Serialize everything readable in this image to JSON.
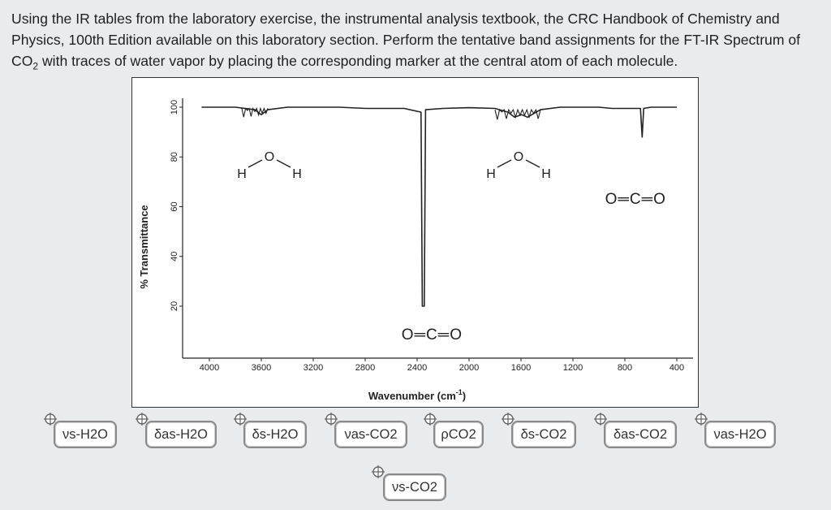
{
  "question": {
    "text_before_sub": "Using the IR tables from the laboratory exercise, the instrumental analysis textbook, the CRC Handbook of Chemistry and Physics, 100th Edition available on this laboratory section.  Perform the tentative band assignments for the  FT-IR Spectrum of CO",
    "subscript": "2",
    "text_after_sub": " with traces of water vapor by placing the corresponding marker at the central atom of each molecule."
  },
  "chart_data": {
    "type": "line",
    "title": "",
    "xlabel": "Wavenumber (cm⁻¹)",
    "ylabel": "% Transmittance",
    "x_reversed": true,
    "xlim": [
      4000,
      400
    ],
    "ylim": [
      0,
      100
    ],
    "x_ticks": [
      "4000",
      "3600",
      "3200",
      "2800",
      "2400",
      "2000",
      "1600",
      "1200",
      "800",
      "400"
    ],
    "y_ticks": [
      "100",
      "80",
      "60",
      "40",
      "20"
    ],
    "series": [
      {
        "values_xy": [
          [
            4060,
            100
          ],
          [
            3800,
            100
          ],
          [
            3650,
            99
          ],
          [
            3600,
            97
          ],
          [
            3550,
            99
          ],
          [
            3400,
            100
          ],
          [
            3000,
            100
          ],
          [
            2800,
            99.5
          ],
          [
            2500,
            99.5
          ],
          [
            2370,
            98
          ],
          [
            2360,
            20
          ],
          [
            2345,
            20
          ],
          [
            2335,
            99
          ],
          [
            2200,
            99.5
          ],
          [
            2000,
            99.8
          ],
          [
            1800,
            99.5
          ],
          [
            1700,
            98
          ],
          [
            1650,
            96
          ],
          [
            1595,
            97
          ],
          [
            1550,
            96
          ],
          [
            1450,
            99
          ],
          [
            1300,
            100
          ],
          [
            1000,
            100
          ],
          [
            900,
            99.5
          ],
          [
            680,
            99.5
          ],
          [
            667,
            88
          ],
          [
            655,
            99.5
          ],
          [
            600,
            100
          ],
          [
            400,
            100
          ]
        ]
      }
    ],
    "annotations": [
      {
        "type": "molecule",
        "atoms": [
          "H",
          "O",
          "H"
        ],
        "near_x": 3600
      },
      {
        "type": "molecule",
        "atoms": [
          "H",
          "O",
          "H"
        ],
        "near_x": 1600
      },
      {
        "type": "molecule",
        "text": "O═C═O",
        "near_x": 2360
      },
      {
        "type": "molecule",
        "text": "O═C═O",
        "near_x": 667
      }
    ]
  },
  "markers": [
    {
      "label": "νs-H2O"
    },
    {
      "label": "δas-H2O"
    },
    {
      "label": "δs-H2O"
    },
    {
      "label": "νas-CO2"
    },
    {
      "label": "ρCO2"
    },
    {
      "label": "δs-CO2"
    },
    {
      "label": "δas-CO2"
    },
    {
      "label": "νas-H2O"
    },
    {
      "label": "νs-CO2"
    }
  ],
  "colors": {
    "background": "#e9ecee",
    "plot_line": "#222222",
    "marker_border": "#8a8a8a"
  }
}
